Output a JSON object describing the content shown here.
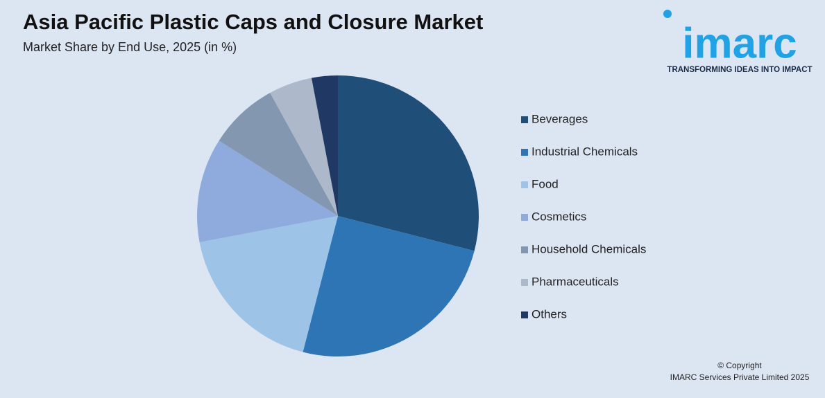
{
  "chart_data": {
    "type": "pie",
    "title": "Asia Pacific Plastic Caps and Closure Market",
    "subtitle": "Market Share by End Use, 2025 (in %)",
    "categories": [
      "Beverages",
      "Industrial Chemicals",
      "Food",
      "Cosmetics",
      "Household Chemicals",
      "Pharmaceuticals",
      "Others"
    ],
    "values": [
      29,
      25,
      18,
      12,
      8,
      5,
      3
    ],
    "colors": [
      "#1f4e79",
      "#2e75b6",
      "#9dc3e6",
      "#8faadc",
      "#8497b0",
      "#adb9ca",
      "#203864"
    ],
    "legend": "right"
  },
  "logo": {
    "name": "imarc",
    "tagline": "TRANSFORMING IDEAS INTO IMPACT"
  },
  "footer": {
    "line1": "© Copyright",
    "line2": "IMARC Services Private Limited 2025"
  }
}
